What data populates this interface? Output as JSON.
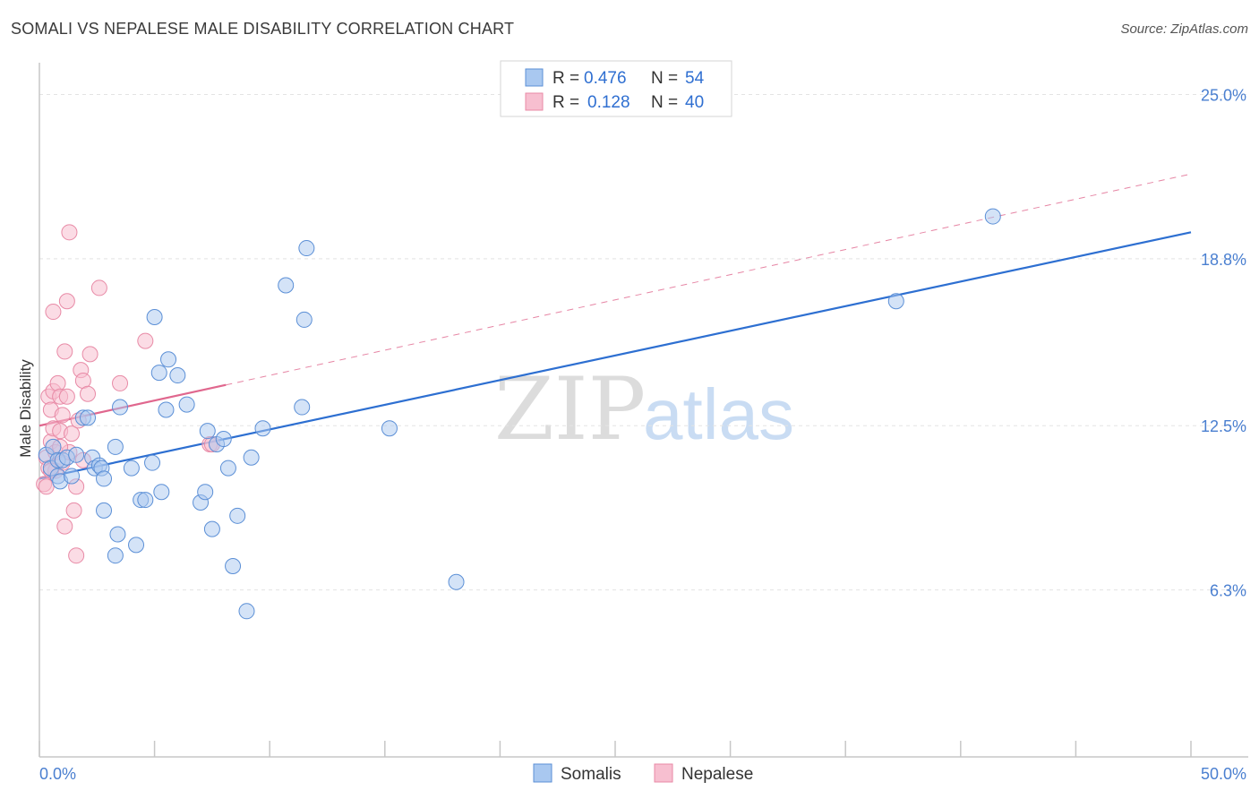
{
  "header": {
    "title": "SOMALI VS NEPALESE MALE DISABILITY CORRELATION CHART",
    "source": "Source: ZipAtlas.com"
  },
  "watermark": {
    "zip": "ZIP",
    "atlas": "atlas"
  },
  "legend": {
    "rows": [
      {
        "r_label": "R = ",
        "r_value": "0.476",
        "n_label": "N = ",
        "n_value": "54"
      },
      {
        "r_label": "R = ",
        "r_value": "0.128",
        "n_label": "N = ",
        "n_value": "40"
      }
    ]
  },
  "bottom_legend": {
    "somalis": "Somalis",
    "nepalese": "Nepalese"
  },
  "chart_data": {
    "type": "scatter",
    "title": "SOMALI VS NEPALESE MALE DISABILITY CORRELATION CHART",
    "xlabel": "",
    "ylabel": "Male Disability",
    "xlim": [
      0,
      50
    ],
    "ylim": [
      0,
      26.2
    ],
    "x_tick_labels": [
      "0.0%",
      "50.0%"
    ],
    "y_ticks": [
      {
        "value": 6.3,
        "label": "6.3%"
      },
      {
        "value": 12.5,
        "label": "12.5%"
      },
      {
        "value": 18.8,
        "label": "18.8%"
      },
      {
        "value": 25.0,
        "label": "25.0%"
      }
    ],
    "colors": {
      "somalis_fill": "#a9c8f0",
      "somalis_stroke": "#5b8fd6",
      "somalis_line": "#2d6fd1",
      "nepalese_fill": "#f7bfd0",
      "nepalese_stroke": "#e88aa6",
      "nepalese_line": "#e0678e"
    },
    "series": [
      {
        "name": "Somalis",
        "R": 0.476,
        "N": 54,
        "trend": {
          "x": [
            0,
            50
          ],
          "y": [
            10.5,
            19.8
          ]
        },
        "points": [
          [
            0.3,
            11.4
          ],
          [
            0.5,
            10.9
          ],
          [
            0.6,
            11.7
          ],
          [
            0.8,
            11.2
          ],
          [
            0.8,
            10.6
          ],
          [
            0.9,
            10.4
          ],
          [
            1.0,
            11.2
          ],
          [
            1.2,
            11.3
          ],
          [
            1.4,
            10.6
          ],
          [
            1.6,
            11.4
          ],
          [
            1.9,
            12.8
          ],
          [
            2.1,
            12.8
          ],
          [
            2.3,
            11.3
          ],
          [
            2.4,
            10.9
          ],
          [
            2.6,
            11.0
          ],
          [
            2.7,
            10.9
          ],
          [
            2.8,
            10.5
          ],
          [
            2.8,
            9.3
          ],
          [
            3.3,
            11.7
          ],
          [
            3.4,
            8.4
          ],
          [
            3.5,
            13.2
          ],
          [
            3.3,
            7.6
          ],
          [
            4.0,
            10.9
          ],
          [
            4.2,
            8.0
          ],
          [
            4.4,
            9.7
          ],
          [
            4.6,
            9.7
          ],
          [
            4.9,
            11.1
          ],
          [
            5.0,
            16.6
          ],
          [
            5.2,
            14.5
          ],
          [
            5.3,
            10.0
          ],
          [
            5.5,
            13.1
          ],
          [
            5.6,
            15.0
          ],
          [
            6.0,
            14.4
          ],
          [
            6.4,
            13.3
          ],
          [
            7.0,
            9.6
          ],
          [
            7.2,
            10.0
          ],
          [
            7.3,
            12.3
          ],
          [
            7.5,
            8.6
          ],
          [
            7.7,
            11.8
          ],
          [
            8.0,
            12.0
          ],
          [
            8.2,
            10.9
          ],
          [
            8.4,
            7.2
          ],
          [
            8.6,
            9.1
          ],
          [
            9.0,
            5.5
          ],
          [
            9.2,
            11.3
          ],
          [
            9.7,
            12.4
          ],
          [
            10.7,
            17.8
          ],
          [
            11.4,
            13.2
          ],
          [
            11.5,
            16.5
          ],
          [
            11.6,
            19.2
          ],
          [
            15.2,
            12.4
          ],
          [
            18.1,
            6.6
          ],
          [
            37.2,
            17.2
          ],
          [
            41.4,
            20.4
          ]
        ]
      },
      {
        "name": "Nepalese",
        "R": 0.128,
        "N": 40,
        "trend": {
          "x": [
            0,
            50
          ],
          "y": [
            12.5,
            22.0
          ]
        },
        "trend_solid_until_x": 8.1,
        "points": [
          [
            0.2,
            10.3
          ],
          [
            0.3,
            10.2
          ],
          [
            0.3,
            11.3
          ],
          [
            0.4,
            10.9
          ],
          [
            0.4,
            13.6
          ],
          [
            0.5,
            13.1
          ],
          [
            0.5,
            11.9
          ],
          [
            0.6,
            13.8
          ],
          [
            0.6,
            12.4
          ],
          [
            0.6,
            16.8
          ],
          [
            0.7,
            11.5
          ],
          [
            0.7,
            10.8
          ],
          [
            0.8,
            14.1
          ],
          [
            0.9,
            13.6
          ],
          [
            0.9,
            12.3
          ],
          [
            1.0,
            12.9
          ],
          [
            1.0,
            11.1
          ],
          [
            1.1,
            15.3
          ],
          [
            1.1,
            8.7
          ],
          [
            1.2,
            13.6
          ],
          [
            1.2,
            17.2
          ],
          [
            1.3,
            11.5
          ],
          [
            1.3,
            19.8
          ],
          [
            1.4,
            12.2
          ],
          [
            1.5,
            9.3
          ],
          [
            1.6,
            10.2
          ],
          [
            1.6,
            7.6
          ],
          [
            1.7,
            12.7
          ],
          [
            1.8,
            14.6
          ],
          [
            1.9,
            14.2
          ],
          [
            1.9,
            11.2
          ],
          [
            2.1,
            13.7
          ],
          [
            2.2,
            15.2
          ],
          [
            2.6,
            17.7
          ],
          [
            3.5,
            14.1
          ],
          [
            4.6,
            15.7
          ],
          [
            7.4,
            11.8
          ],
          [
            7.5,
            11.8
          ],
          [
            0.9,
            11.7
          ],
          [
            0.5,
            10.8
          ]
        ]
      }
    ]
  }
}
